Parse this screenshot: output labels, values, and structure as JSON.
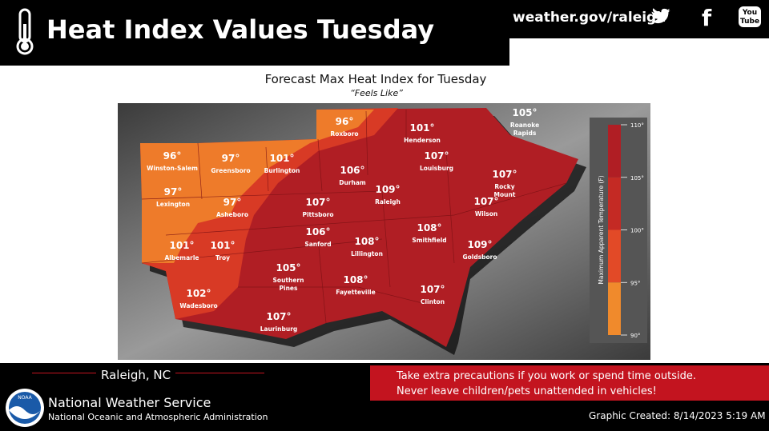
{
  "header": {
    "title": "Heat Index Values Tuesday",
    "website": "weather.gov/raleigh",
    "youtube_label": [
      "You",
      "Tube"
    ]
  },
  "map": {
    "title": "Forecast Max Heat Index for Tuesday",
    "subtitle": "“Feels Like”",
    "cities": [
      {
        "temp": "96°",
        "name": [
          "Roxboro"
        ]
      },
      {
        "temp": "101°",
        "name": [
          "Henderson"
        ]
      },
      {
        "temp": "105°",
        "name": [
          "Roanoke",
          "Rapids"
        ]
      },
      {
        "temp": "96°",
        "name": [
          "Winston-Salem"
        ]
      },
      {
        "temp": "97°",
        "name": [
          "Greensboro"
        ]
      },
      {
        "temp": "101°",
        "name": [
          "Burlington"
        ]
      },
      {
        "temp": "106°",
        "name": [
          "Durham"
        ]
      },
      {
        "temp": "107°",
        "name": [
          "Louisburg"
        ]
      },
      {
        "temp": "107°",
        "name": [
          "Rocky",
          "Mount"
        ]
      },
      {
        "temp": "97°",
        "name": [
          "Lexington"
        ]
      },
      {
        "temp": "97°",
        "name": [
          "Asheboro"
        ]
      },
      {
        "temp": "107°",
        "name": [
          "Pittsboro"
        ]
      },
      {
        "temp": "109°",
        "name": [
          "Raleigh"
        ]
      },
      {
        "temp": "107°",
        "name": [
          "Wilson"
        ]
      },
      {
        "temp": "108°",
        "name": [
          "Smithfield"
        ]
      },
      {
        "temp": "106°",
        "name": [
          "Sanford"
        ]
      },
      {
        "temp": "108°",
        "name": [
          "Lillington"
        ]
      },
      {
        "temp": "109°",
        "name": [
          "Goldsboro"
        ]
      },
      {
        "temp": "101°",
        "name": [
          "Albemarle"
        ]
      },
      {
        "temp": "101°",
        "name": [
          "Troy"
        ]
      },
      {
        "temp": "105°",
        "name": [
          "Southern",
          "Pines"
        ]
      },
      {
        "temp": "108°",
        "name": [
          "Fayetteville"
        ]
      },
      {
        "temp": "107°",
        "name": [
          "Clinton"
        ]
      },
      {
        "temp": "102°",
        "name": [
          "Wadesboro"
        ]
      },
      {
        "temp": "107°",
        "name": [
          "Laurinburg"
        ]
      }
    ],
    "legend": {
      "title": "Maximum Apparent Temperature (F)",
      "ticks": [
        "110°",
        "105°",
        "100°",
        "95°",
        "90°"
      ]
    }
  },
  "footer": {
    "office": "Raleigh, NC",
    "message": [
      "Take extra precautions if you work or spend time outside.",
      "Never leave children/pets unattended in vehicles!"
    ],
    "agency": "National Weather Service",
    "agency_full": "National Oceanic and Atmospheric Administration",
    "logo": "NOAA",
    "created": "Graphic Created: 8/14/2023 5:19 AM"
  }
}
